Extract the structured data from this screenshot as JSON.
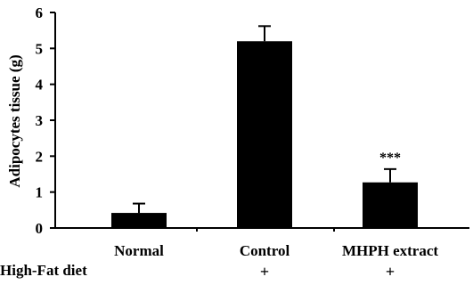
{
  "chart_data": {
    "type": "bar",
    "title": "",
    "xlabel": "",
    "ylabel": "Adipocytes tissue (g)",
    "ylim": [
      0,
      6
    ],
    "yticks": [
      "0",
      "1",
      "2",
      "3",
      "4",
      "5",
      "6"
    ],
    "categories": [
      "Normal",
      "Control",
      "MHPH extract"
    ],
    "values": [
      0.42,
      5.2,
      1.27
    ],
    "errors": [
      0.26,
      0.42,
      0.37
    ],
    "annotations": [
      "",
      "",
      "***"
    ],
    "bar_color": "#000000",
    "grid": false,
    "row_label": "High-Fat diet",
    "row_values": [
      "",
      "+",
      "+"
    ]
  }
}
